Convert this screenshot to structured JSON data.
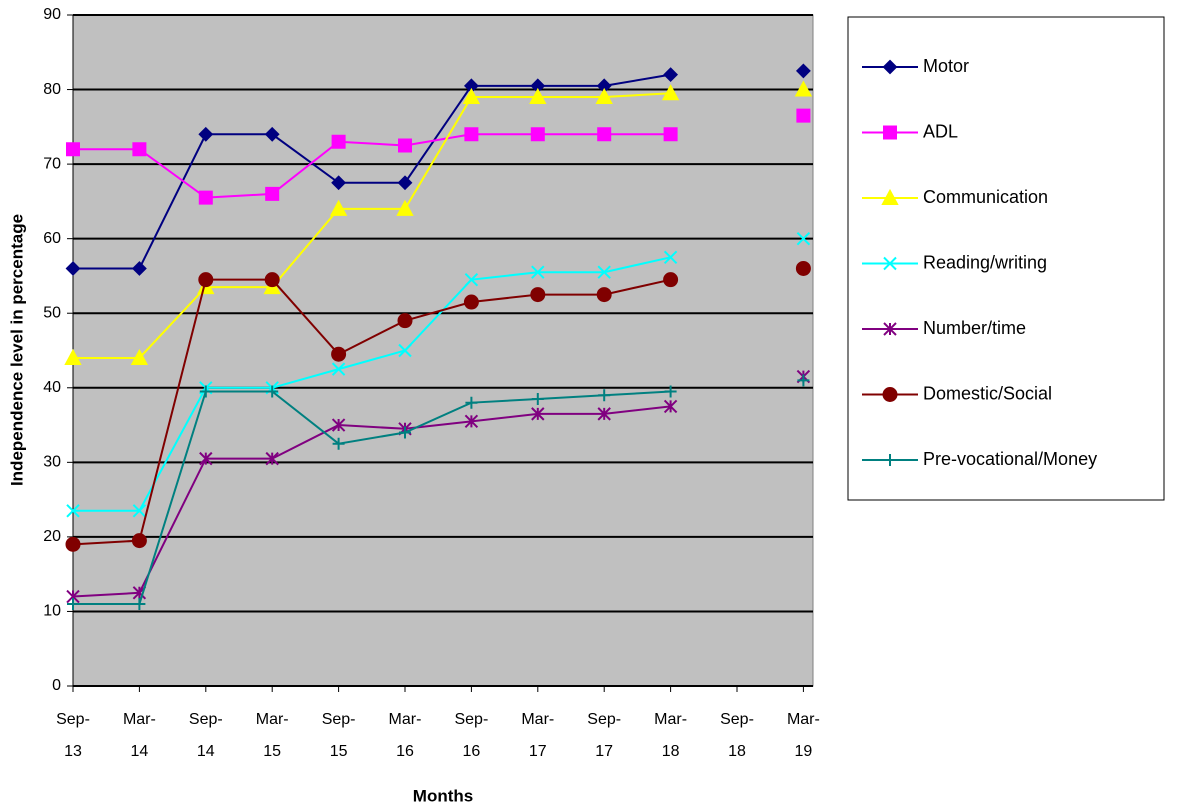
{
  "chart_data": {
    "type": "line",
    "x_label": "Months",
    "y_label": "Independence level in percentage",
    "categories": [
      "Sep-13",
      "Mar-14",
      "Sep-14",
      "Mar-15",
      "Sep-15",
      "Mar-16",
      "Sep-16",
      "Mar-17",
      "Sep-17",
      "Mar-18",
      "Sep-18",
      "Mar-19"
    ],
    "ylim": [
      0,
      90
    ],
    "yticks": [
      0,
      10,
      20,
      30,
      40,
      50,
      60,
      70,
      80,
      90
    ],
    "grid": true,
    "legend": "right",
    "series": [
      {
        "name": "Motor",
        "color": "#000080",
        "marker": "diamond",
        "values": [
          56,
          56,
          74,
          74,
          67.5,
          67.5,
          80.5,
          80.5,
          80.5,
          82,
          null,
          82.5
        ]
      },
      {
        "name": "ADL",
        "color": "#ff00ff",
        "marker": "square",
        "values": [
          72,
          72,
          65.5,
          66,
          73,
          72.5,
          74,
          74,
          74,
          74,
          null,
          76.5
        ]
      },
      {
        "name": "Communication",
        "color": "#ffff00",
        "marker": "triangle",
        "values": [
          44,
          44,
          53.5,
          53.5,
          64,
          64,
          79,
          79,
          79,
          79.5,
          null,
          80
        ]
      },
      {
        "name": "Reading/writing",
        "color": "#00ffff",
        "marker": "x",
        "values": [
          23.5,
          23.5,
          40,
          40,
          42.5,
          45,
          54.5,
          55.5,
          55.5,
          57.5,
          null,
          60
        ]
      },
      {
        "name": "Number/time",
        "color": "#800080",
        "marker": "star",
        "values": [
          12,
          12.5,
          30.5,
          30.5,
          35,
          34.5,
          35.5,
          36.5,
          36.5,
          37.5,
          null,
          41.5
        ]
      },
      {
        "name": "Domestic/Social",
        "color": "#800000",
        "marker": "circle",
        "values": [
          19,
          19.5,
          54.5,
          54.5,
          44.5,
          49,
          51.5,
          52.5,
          52.5,
          54.5,
          null,
          56
        ]
      },
      {
        "name": "Pre-vocational/Money",
        "color": "#008080",
        "marker": "plus",
        "values": [
          11,
          11,
          39.5,
          39.5,
          32.5,
          34,
          38,
          38.5,
          39,
          39.5,
          null,
          41
        ]
      }
    ]
  }
}
